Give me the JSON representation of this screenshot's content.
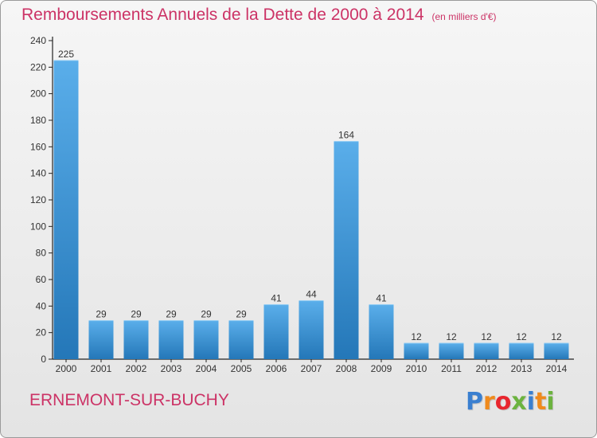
{
  "chart_data": {
    "type": "bar",
    "title": "Remboursements Annuels de la Dette de 2000 à 2014",
    "subtitle": "(en milliers d'€)",
    "categories": [
      "2000",
      "2001",
      "2002",
      "2003",
      "2004",
      "2005",
      "2006",
      "2007",
      "2008",
      "2009",
      "2010",
      "2011",
      "2012",
      "2013",
      "2014"
    ],
    "values": [
      225,
      29,
      29,
      29,
      29,
      29,
      41,
      44,
      164,
      41,
      12,
      12,
      12,
      12,
      12
    ],
    "data_labels": [
      "225",
      "29",
      "29",
      "29",
      "29",
      "29",
      "41",
      "44",
      "164",
      "41",
      "12",
      "12",
      "12",
      "12",
      "12"
    ],
    "y_ticks": [
      0,
      20,
      40,
      60,
      80,
      100,
      120,
      140,
      160,
      180,
      200,
      220,
      240
    ],
    "ylim": [
      0,
      240
    ],
    "xlabel": "",
    "ylabel": "",
    "grid": false,
    "legend": "none",
    "colors": {
      "bar_light": "#5aaeea",
      "bar_dark": "#2477b8",
      "axis": "#222222",
      "text": "#333333"
    }
  },
  "footer": {
    "commune": "ERNEMONT-SUR-BUCHY",
    "logo_letters": [
      "P",
      "r",
      "o",
      "x",
      "i",
      "t",
      "i"
    ],
    "logo_colors": [
      "#3a7fd0",
      "#f08a1c",
      "#e8262e",
      "#6cb33f",
      "#3a7fd0",
      "#f08a1c",
      "#6cb33f"
    ]
  },
  "colors": {
    "accent": "#cc3366"
  }
}
